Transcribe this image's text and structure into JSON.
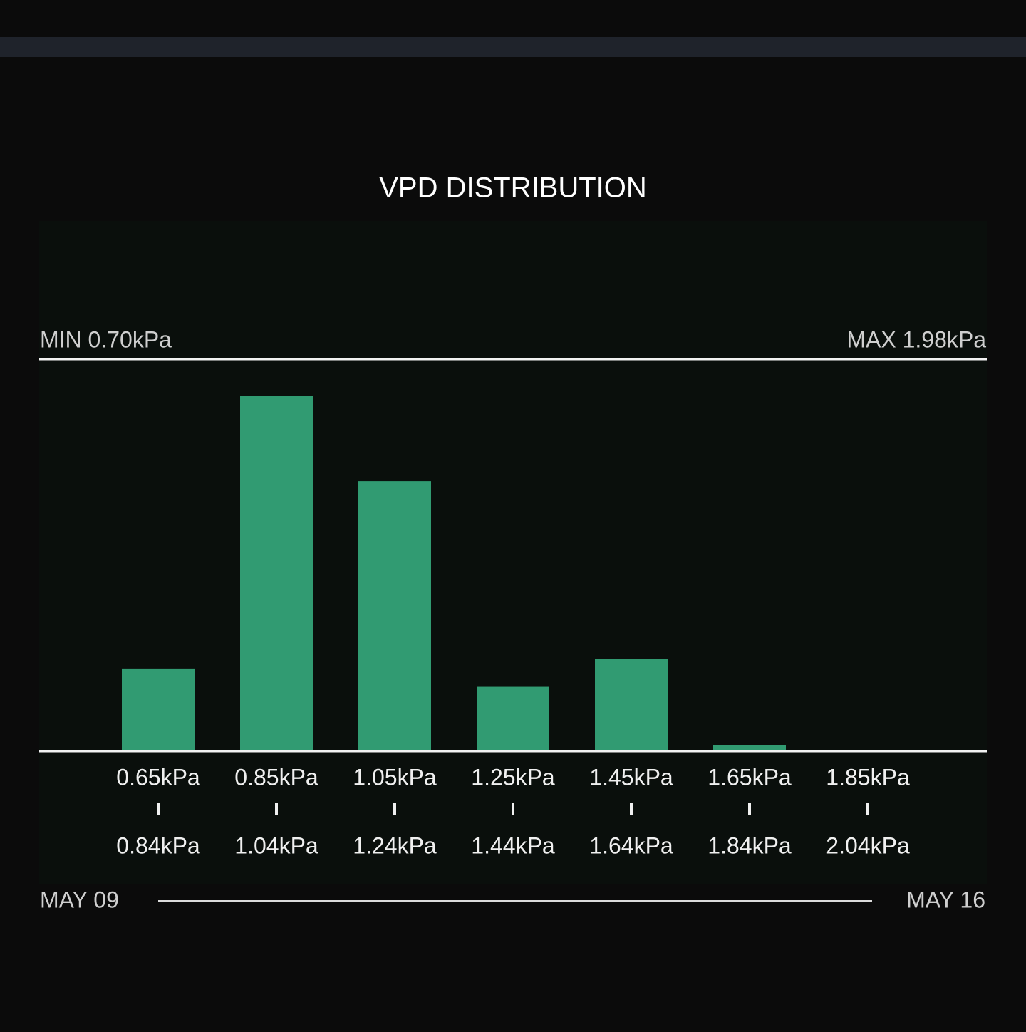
{
  "chart_data": {
    "type": "bar",
    "title": "VPD DISTRIBUTION",
    "min_label": "MIN 0.70kPa",
    "max_label": "MAX 1.98kPa",
    "categories": [
      {
        "low": "0.65kPa",
        "high": "0.84kPa"
      },
      {
        "low": "0.85kPa",
        "high": "1.04kPa"
      },
      {
        "low": "1.05kPa",
        "high": "1.24kPa"
      },
      {
        "low": "1.25kPa",
        "high": "1.44kPa"
      },
      {
        "low": "1.45kPa",
        "high": "1.64kPa"
      },
      {
        "low": "1.65kPa",
        "high": "1.84kPa"
      },
      {
        "low": "1.85kPa",
        "high": "2.04kPa"
      }
    ],
    "values": [
      9.5,
      40.8,
      31.0,
      7.4,
      10.6,
      0.7,
      0
    ],
    "color": "#319b72",
    "ylim": [
      0,
      45
    ],
    "date_start": "MAY 09",
    "date_end": "MAY 16"
  }
}
